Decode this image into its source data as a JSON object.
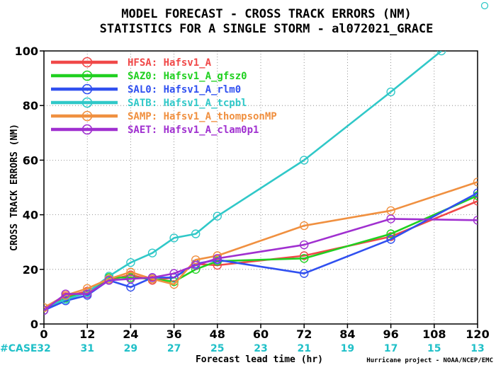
{
  "chart_data": {
    "type": "line",
    "title": "MODEL FORECAST - CROSS TRACK ERRORS (NM)",
    "subtitle": "STATISTICS FOR A SINGLE STORM - al072021_GRACE",
    "xlabel": "Forecast lead time (hr)",
    "ylabel": "CROSS TRACK ERRORS (NM)",
    "xlim": [
      0,
      120
    ],
    "ylim": [
      0,
      100
    ],
    "xticks": [
      0,
      12,
      24,
      36,
      48,
      60,
      72,
      84,
      96,
      108,
      120
    ],
    "yticks": [
      0,
      20,
      40,
      60,
      80,
      100
    ],
    "grid": true,
    "legend_position": "top-left",
    "case_label": "#CASE",
    "case_color": "#20c0c8",
    "case_x": [
      0,
      12,
      24,
      36,
      48,
      60,
      72,
      84,
      96,
      108,
      120
    ],
    "case_counts": [
      "32",
      "31",
      "29",
      "27",
      "25",
      "23",
      "21",
      "19",
      "17",
      "15",
      "13"
    ],
    "credit": "Hurricane project - NOAA/NCEP/EMC",
    "series": [
      {
        "name": "HFSA",
        "label": "Hafsv1_A",
        "color": "#f04848",
        "x": [
          0,
          6,
          12,
          18,
          24,
          30,
          36,
          42,
          48,
          72,
          96,
          120
        ],
        "y": [
          6,
          10,
          12,
          16,
          18,
          16,
          17,
          22,
          21.5,
          25,
          32,
          45
        ]
      },
      {
        "name": "SAZ0",
        "label": "Hafsv1_A_gfsz0",
        "color": "#20d020",
        "x": [
          0,
          6,
          12,
          18,
          24,
          30,
          36,
          42,
          48,
          72,
          96,
          120
        ],
        "y": [
          5,
          9.5,
          11.5,
          17,
          17,
          16.5,
          15.5,
          20,
          23,
          24,
          33,
          47
        ]
      },
      {
        "name": "SAL0",
        "label": "Hafsv1_A_rlm0",
        "color": "#3050f0",
        "x": [
          0,
          6,
          12,
          18,
          24,
          30,
          36,
          42,
          48,
          72,
          96,
          120
        ],
        "y": [
          5,
          8.5,
          10.5,
          16,
          13.5,
          17,
          17,
          22,
          23.5,
          18.5,
          31,
          48
        ]
      },
      {
        "name": "SATB",
        "label": "Hafsv1_A_tcpbl",
        "color": "#30c8c8",
        "x": [
          0,
          6,
          12,
          18,
          24,
          30,
          36,
          42,
          48,
          72,
          96,
          110
        ],
        "y": [
          6,
          9,
          11.5,
          17.5,
          22.5,
          26,
          31.5,
          33,
          39.5,
          60,
          85,
          100
        ]
      },
      {
        "name": "SAMP",
        "label": "Hafsv1_A_thompsonMP",
        "color": "#f09040",
        "x": [
          0,
          6,
          12,
          18,
          24,
          30,
          36,
          42,
          48,
          72,
          96,
          120
        ],
        "y": [
          6,
          10.5,
          13,
          16.5,
          19,
          16.5,
          14.5,
          23.5,
          25,
          36,
          41.5,
          52
        ]
      },
      {
        "name": "SAET",
        "label": "Hafsv1_A_clam0p1",
        "color": "#a030d0",
        "x": [
          0,
          6,
          12,
          18,
          24,
          30,
          36,
          42,
          48,
          72,
          96,
          120
        ],
        "y": [
          5,
          11,
          11,
          16,
          16.5,
          17,
          18.5,
          21.5,
          24,
          29,
          38.5,
          38
        ]
      }
    ]
  }
}
